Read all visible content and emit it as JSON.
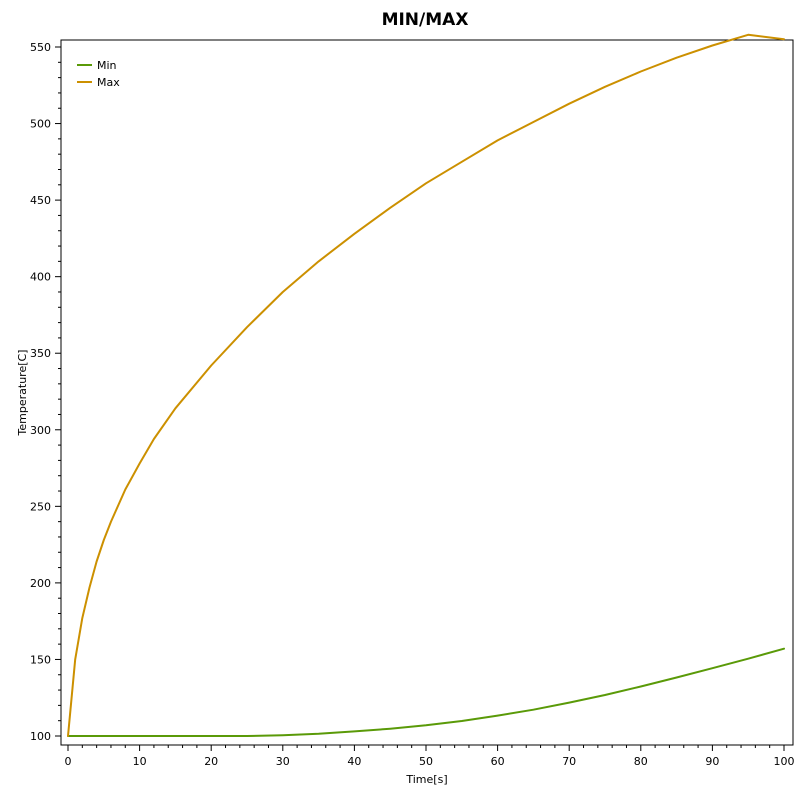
{
  "chart_data": {
    "type": "line",
    "title": "MIN/MAX",
    "xlabel": "Time[s]",
    "ylabel": "Temperature[C]",
    "xlim": [
      0,
      100
    ],
    "ylim": [
      97,
      560
    ],
    "xticks": [
      0,
      10,
      20,
      30,
      40,
      50,
      60,
      70,
      80,
      90,
      100
    ],
    "yticks": [
      100,
      150,
      200,
      250,
      300,
      350,
      400,
      450,
      500,
      550
    ],
    "grid": false,
    "legend_position": "top-left",
    "x": [
      0,
      1,
      2,
      3,
      4,
      5,
      6,
      8,
      10,
      12,
      15,
      20,
      25,
      30,
      35,
      40,
      45,
      50,
      55,
      60,
      65,
      70,
      75,
      80,
      85,
      90,
      95,
      100
    ],
    "series": [
      {
        "name": "Min",
        "color": "#5a9a08",
        "values": [
          100,
          100,
          100,
          100,
          100,
          100,
          100,
          100,
          100,
          100,
          100,
          100,
          100,
          100.5,
          101.5,
          103,
          104.8,
          107,
          109.8,
          113.3,
          117.2,
          121.8,
          126.8,
          132.3,
          138.2,
          144.3,
          150.5,
          157
        ]
      },
      {
        "name": "Max",
        "color": "#cc9000",
        "values": [
          100,
          150,
          177,
          197,
          214,
          228,
          240,
          261,
          278,
          294,
          314,
          342,
          367,
          390,
          410,
          428,
          445,
          461,
          475,
          489,
          501,
          513,
          524,
          534,
          543,
          551,
          558,
          555
        ]
      }
    ]
  }
}
